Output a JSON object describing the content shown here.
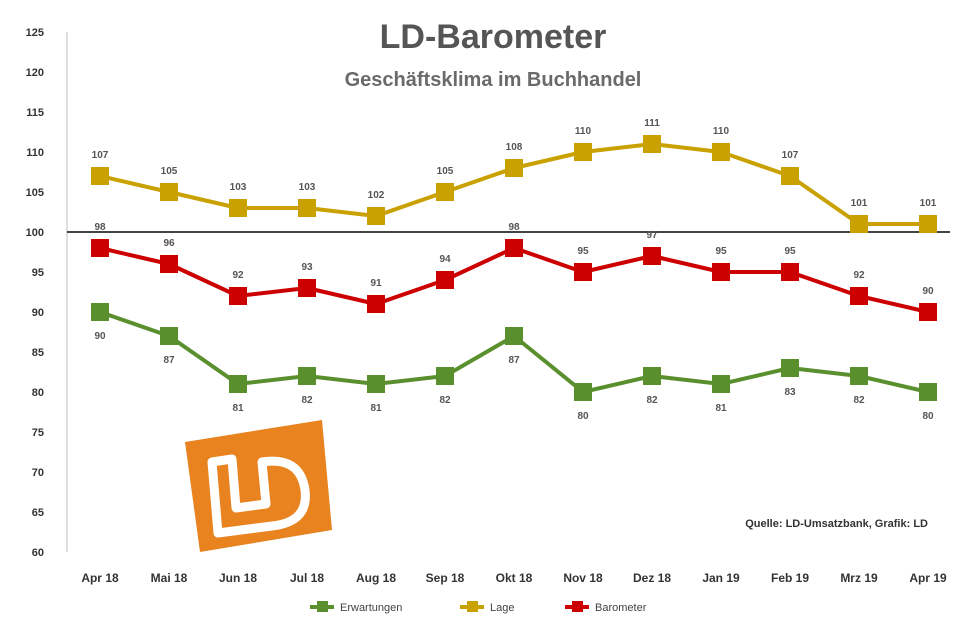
{
  "chart_data": {
    "type": "line",
    "title": "LD-Barometer",
    "subtitle": "Geschäftsklima im Buchhandel",
    "categories": [
      "Apr 18",
      "Mai 18",
      "Jun 18",
      "Jul 18",
      "Aug 18",
      "Sep 18",
      "Okt 18",
      "Nov 18",
      "Dez 18",
      "Jan 19",
      "Feb 19",
      "Mrz 19",
      "Apr 19"
    ],
    "y_ticks": [
      "125",
      "120",
      "115",
      "110",
      "105",
      "100",
      "95",
      "90",
      "85",
      "80",
      "75",
      "70",
      "65",
      "60"
    ],
    "ylim": [
      60,
      125
    ],
    "reference_line": 100,
    "series": [
      {
        "name": "Erwartungen",
        "color": "#5a8f2e",
        "values": [
          90,
          87,
          81,
          82,
          81,
          82,
          87,
          80,
          82,
          81,
          83,
          82,
          80
        ],
        "labels_position": "below"
      },
      {
        "name": "Lage",
        "color": "#c9a100",
        "values": [
          107,
          105,
          103,
          103,
          102,
          105,
          108,
          110,
          111,
          110,
          107,
          101,
          101
        ],
        "labels_position": "above"
      },
      {
        "name": "Barometer",
        "color": "#cc0000",
        "values": [
          98,
          96,
          92,
          93,
          91,
          94,
          98,
          95,
          97,
          95,
          95,
          92,
          90
        ],
        "labels_position": "above"
      }
    ],
    "grid": false,
    "legend_placement": "bottom",
    "source": "Quelle: LD-Umsatzbank, Grafik: LD",
    "logo_text": "LD"
  }
}
